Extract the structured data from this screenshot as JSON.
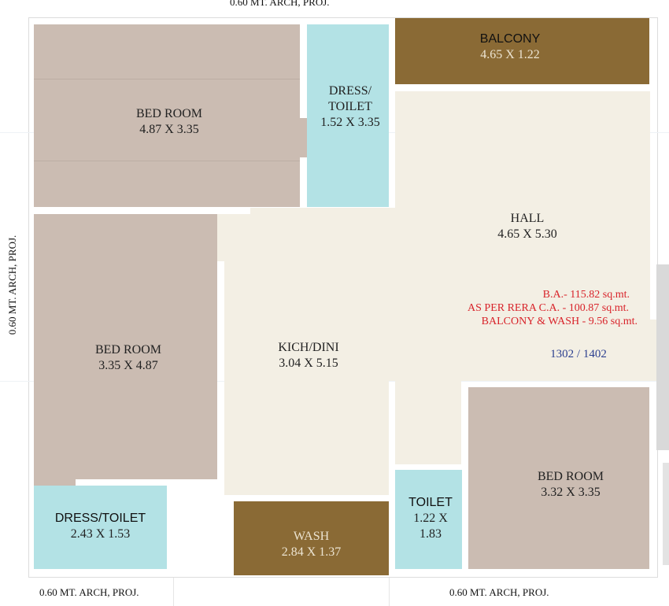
{
  "projections": {
    "top": "0.60 MT. ARCH, PROJ.",
    "left": "0.60 MT. ARCH, PROJ.",
    "bottom_left": "0.60 MT. ARCH, PROJ.",
    "bottom_right": "0.60 MT. ARCH, PROJ."
  },
  "rooms": {
    "bedroom_1": {
      "name": "BED ROOM",
      "size": "4.87 X 3.35"
    },
    "dress_toilet_1": {
      "name_line1": "DRESS/",
      "name_line2": "TOILET",
      "size": "1.52 X 3.35"
    },
    "balcony": {
      "name": "BALCONY",
      "size": "4.65 X 1.22"
    },
    "hall": {
      "name": "HALL",
      "size": "4.65 X 5.30"
    },
    "bedroom_2": {
      "name": "BED ROOM",
      "size": "3.35 X 4.87"
    },
    "kitchen": {
      "name": "KICH/DINI",
      "size": "3.04 X 5.15"
    },
    "dress_toilet_2": {
      "name": "DRESS/TOILET",
      "size": "2.43 X 1.53"
    },
    "wash": {
      "name": "WASH",
      "size": "2.84 X 1.37"
    },
    "toilet": {
      "name": "TOILET",
      "size_line1": "1.22 X",
      "size_line2": "1.83"
    },
    "bedroom_3": {
      "name": "BED ROOM",
      "size": "3.32 X 3.35"
    }
  },
  "area_notes": {
    "ba": "B.A.- 115.82 sq.mt.",
    "rera": "AS PER RERA C.A. - 100.87 sq.mt.",
    "balcony_wash": "BALCONY & WASH - 9.56  sq.mt."
  },
  "flat_numbers": "1302 / 1402",
  "colors": {
    "wall": "#ffffff",
    "outline": "#dcdcdc",
    "bedroom": "#cbbcb2",
    "toilet": "#b3e2e5",
    "balcony": "#8a6a35",
    "hall": "#f3efe4",
    "note_red": "#d8232a",
    "flat_blue": "#2b3f8f"
  }
}
